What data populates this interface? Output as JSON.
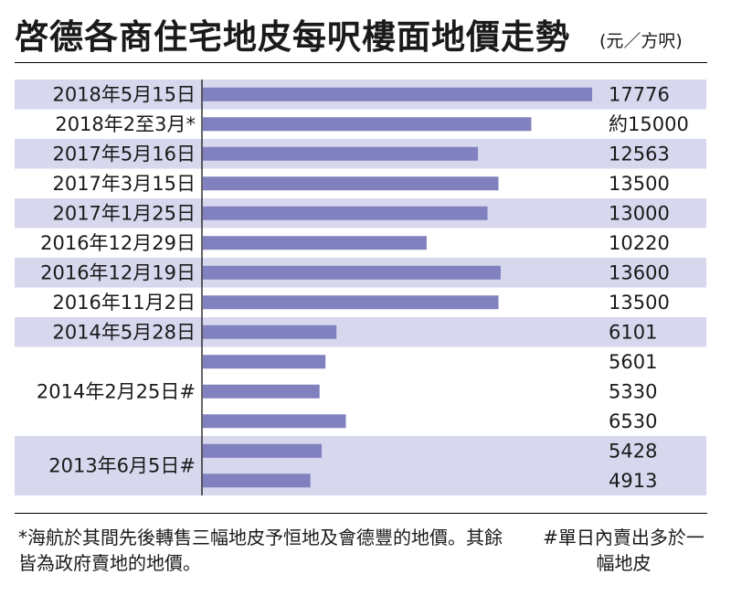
{
  "header": {
    "title": "啓德各商住宅地皮每呎樓面地價走勢",
    "unit": "(元／方呎)"
  },
  "chart_data": {
    "type": "bar",
    "orientation": "horizontal",
    "colors": {
      "bar": "#8181bf",
      "band": "#d7d7ee",
      "axis": "#000000"
    },
    "rows": [
      {
        "label": "2018年5月15日",
        "banded": true,
        "bars": [
          {
            "value": 17776,
            "value_label": "17776"
          }
        ]
      },
      {
        "label": "2018年2至3月*",
        "banded": false,
        "bars": [
          {
            "value": 15000,
            "value_label": "約15000"
          }
        ]
      },
      {
        "label": "2017年5月16日",
        "banded": true,
        "bars": [
          {
            "value": 12563,
            "value_label": "12563"
          }
        ]
      },
      {
        "label": "2017年3月15日",
        "banded": false,
        "bars": [
          {
            "value": 13500,
            "value_label": "13500"
          }
        ]
      },
      {
        "label": "2017年1月25日",
        "banded": true,
        "bars": [
          {
            "value": 13000,
            "value_label": "13000"
          }
        ]
      },
      {
        "label": "2016年12月29日",
        "banded": false,
        "bars": [
          {
            "value": 10220,
            "value_label": "10220"
          }
        ]
      },
      {
        "label": "2016年12月19日",
        "banded": true,
        "bars": [
          {
            "value": 13600,
            "value_label": "13600"
          }
        ]
      },
      {
        "label": "2016年11月2日",
        "banded": false,
        "bars": [
          {
            "value": 13500,
            "value_label": "13500"
          }
        ]
      },
      {
        "label": "2014年5月28日",
        "banded": true,
        "bars": [
          {
            "value": 6101,
            "value_label": "6101"
          }
        ]
      },
      {
        "label": "2014年2月25日#",
        "banded": false,
        "bars": [
          {
            "value": 5601,
            "value_label": "5601"
          },
          {
            "value": 5330,
            "value_label": "5330"
          },
          {
            "value": 6530,
            "value_label": "6530"
          }
        ]
      },
      {
        "label": "2013年6月5日#",
        "banded": true,
        "bars": [
          {
            "value": 5428,
            "value_label": "5428"
          },
          {
            "value": 4913,
            "value_label": "4913"
          }
        ]
      }
    ],
    "xlim": [
      0,
      17776
    ]
  },
  "notes": {
    "left": "*海航於其間先後轉售三幅地皮予恒地及會德豐的地價。其餘皆為政府賣地的地價。",
    "right": "#單日內賣出多於一幅地皮"
  }
}
